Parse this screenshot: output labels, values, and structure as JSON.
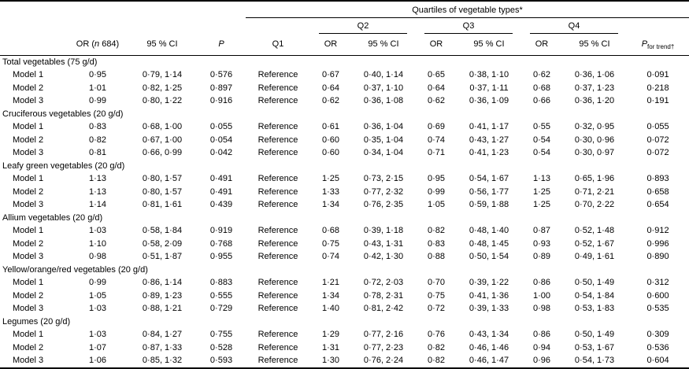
{
  "table": {
    "header": {
      "group_title": "Quartiles of vegetable types*",
      "or_n": {
        "pre": "OR (",
        "n": "n",
        "post": " 684)"
      },
      "ci_label": "95 % CI",
      "p_label": "P",
      "q1_label": "Q1",
      "q2_label": "Q2",
      "q3_label": "Q3",
      "q4_label": "Q4",
      "or_label": "OR",
      "p_trend": {
        "p": "P",
        "sub": "for trend†"
      }
    },
    "sections": [
      {
        "title": "Total vegetables (75 g/d)",
        "rows": [
          {
            "label": "Model 1",
            "or": "0·95",
            "ci": "0·79, 1·14",
            "p": "0·576",
            "q1": "Reference",
            "q2_or": "0·67",
            "q2_ci": "0·40, 1·14",
            "q3_or": "0·65",
            "q3_ci": "0·38, 1·10",
            "q4_or": "0·62",
            "q4_ci": "0·36, 1·06",
            "p_trend": "0·091"
          },
          {
            "label": "Model 2",
            "or": "1·01",
            "ci": "0·82, 1·25",
            "p": "0·897",
            "q1": "Reference",
            "q2_or": "0·64",
            "q2_ci": "0·37, 1·10",
            "q3_or": "0·64",
            "q3_ci": "0·37, 1·11",
            "q4_or": "0·68",
            "q4_ci": "0·37, 1·23",
            "p_trend": "0·218"
          },
          {
            "label": "Model 3",
            "or": "0·99",
            "ci": "0·80, 1·22",
            "p": "0·916",
            "q1": "Reference",
            "q2_or": "0·62",
            "q2_ci": "0·36, 1·08",
            "q3_or": "0·62",
            "q3_ci": "0·36, 1·09",
            "q4_or": "0·66",
            "q4_ci": "0·36, 1·20",
            "p_trend": "0·191"
          }
        ]
      },
      {
        "title": "Cruciferous vegetables (20 g/d)",
        "rows": [
          {
            "label": "Model 1",
            "or": "0·83",
            "ci": "0·68, 1·00",
            "p": "0·055",
            "q1": "Reference",
            "q2_or": "0·61",
            "q2_ci": "0·36, 1·04",
            "q3_or": "0·69",
            "q3_ci": "0·41, 1·17",
            "q4_or": "0·55",
            "q4_ci": "0·32, 0·95",
            "p_trend": "0·055"
          },
          {
            "label": "Model 2",
            "or": "0·82",
            "ci": "0·67, 1·00",
            "p": "0·054",
            "q1": "Reference",
            "q2_or": "0·60",
            "q2_ci": "0·35, 1·04",
            "q3_or": "0·74",
            "q3_ci": "0·43, 1·27",
            "q4_or": "0·54",
            "q4_ci": "0·30, 0·96",
            "p_trend": "0·072"
          },
          {
            "label": "Model 3",
            "or": "0·81",
            "ci": "0·66, 0·99",
            "p": "0·042",
            "q1": "Reference",
            "q2_or": "0·60",
            "q2_ci": "0·34, 1·04",
            "q3_or": "0·71",
            "q3_ci": "0·41, 1·23",
            "q4_or": "0·54",
            "q4_ci": "0·30, 0·97",
            "p_trend": "0·072"
          }
        ]
      },
      {
        "title": "Leafy green vegetables (20 g/d)",
        "rows": [
          {
            "label": "Model 1",
            "or": "1·13",
            "ci": "0·80, 1·57",
            "p": "0·491",
            "q1": "Reference",
            "q2_or": "1·25",
            "q2_ci": "0·73, 2·15",
            "q3_or": "0·95",
            "q3_ci": "0·54, 1·67",
            "q4_or": "1·13",
            "q4_ci": "0·65, 1·96",
            "p_trend": "0·893"
          },
          {
            "label": "Model 2",
            "or": "1·13",
            "ci": "0·80, 1·57",
            "p": "0·491",
            "q1": "Reference",
            "q2_or": "1·33",
            "q2_ci": "0·77, 2·32",
            "q3_or": "0·99",
            "q3_ci": "0·56, 1·77",
            "q4_or": "1·25",
            "q4_ci": "0·71, 2·21",
            "p_trend": "0·658"
          },
          {
            "label": "Model 3",
            "or": "1·14",
            "ci": "0·81, 1·61",
            "p": "0·439",
            "q1": "Reference",
            "q2_or": "1·34",
            "q2_ci": "0·76, 2·35",
            "q3_or": "1·05",
            "q3_ci": "0·59, 1·88",
            "q4_or": "1·25",
            "q4_ci": "0·70, 2·22",
            "p_trend": "0·654"
          }
        ]
      },
      {
        "title": "Allium vegetables (20 g/d)",
        "rows": [
          {
            "label": "Model 1",
            "or": "1·03",
            "ci": "0·58, 1·84",
            "p": "0·919",
            "q1": "Reference",
            "q2_or": "0·68",
            "q2_ci": "0·39, 1·18",
            "q3_or": "0·82",
            "q3_ci": "0·48, 1·40",
            "q4_or": "0·87",
            "q4_ci": "0·52, 1·48",
            "p_trend": "0·912"
          },
          {
            "label": "Model 2",
            "or": "1·10",
            "ci": "0·58, 2·09",
            "p": "0·768",
            "q1": "Reference",
            "q2_or": "0·75",
            "q2_ci": "0·43, 1·31",
            "q3_or": "0·83",
            "q3_ci": "0·48, 1·45",
            "q4_or": "0·93",
            "q4_ci": "0·52, 1·67",
            "p_trend": "0·996"
          },
          {
            "label": "Model 3",
            "or": "0·98",
            "ci": "0·51, 1·87",
            "p": "0·955",
            "q1": "Reference",
            "q2_or": "0·74",
            "q2_ci": "0·42, 1·30",
            "q3_or": "0·88",
            "q3_ci": "0·50, 1·54",
            "q4_or": "0·89",
            "q4_ci": "0·49, 1·61",
            "p_trend": "0·890"
          }
        ]
      },
      {
        "title": "Yellow/orange/red vegetables (20 g/d)",
        "rows": [
          {
            "label": "Model 1",
            "or": "0·99",
            "ci": "0·86, 1·14",
            "p": "0·883",
            "q1": "Reference",
            "q2_or": "1·21",
            "q2_ci": "0·72, 2·03",
            "q3_or": "0·70",
            "q3_ci": "0·39, 1·22",
            "q4_or": "0·86",
            "q4_ci": "0·50, 1·49",
            "p_trend": "0·312"
          },
          {
            "label": "Model 2",
            "or": "1·05",
            "ci": "0·89, 1·23",
            "p": "0·555",
            "q1": "Reference",
            "q2_or": "1·34",
            "q2_ci": "0·78, 2·31",
            "q3_or": "0·75",
            "q3_ci": "0·41, 1·36",
            "q4_or": "1·00",
            "q4_ci": "0·54, 1·84",
            "p_trend": "0·600"
          },
          {
            "label": "Model 3",
            "or": "1·03",
            "ci": "0·88, 1·21",
            "p": "0·729",
            "q1": "Reference",
            "q2_or": "1·40",
            "q2_ci": "0·81, 2·42",
            "q3_or": "0·72",
            "q3_ci": "0·39, 1·33",
            "q4_or": "0·98",
            "q4_ci": "0·53, 1·83",
            "p_trend": "0·535"
          }
        ]
      },
      {
        "title": "Legumes (20 g/d)",
        "rows": [
          {
            "label": "Model 1",
            "or": "1·03",
            "ci": "0·84, 1·27",
            "p": "0·755",
            "q1": "Reference",
            "q2_or": "1·29",
            "q2_ci": "0·77, 2·16",
            "q3_or": "0·76",
            "q3_ci": "0·43, 1·34",
            "q4_or": "0·86",
            "q4_ci": "0·50, 1·49",
            "p_trend": "0·309"
          },
          {
            "label": "Model 2",
            "or": "1·07",
            "ci": "0·87, 1·33",
            "p": "0·528",
            "q1": "Reference",
            "q2_or": "1·31",
            "q2_ci": "0·77, 2·23",
            "q3_or": "0·82",
            "q3_ci": "0·46, 1·46",
            "q4_or": "0·94",
            "q4_ci": "0·53, 1·67",
            "p_trend": "0·536"
          },
          {
            "label": "Model 3",
            "or": "1·06",
            "ci": "0·85, 1·32",
            "p": "0·593",
            "q1": "Reference",
            "q2_or": "1·30",
            "q2_ci": "0·76, 2·24",
            "q3_or": "0·82",
            "q3_ci": "0·46, 1·47",
            "q4_or": "0·96",
            "q4_ci": "0·54, 1·73",
            "p_trend": "0·604"
          }
        ]
      }
    ]
  }
}
